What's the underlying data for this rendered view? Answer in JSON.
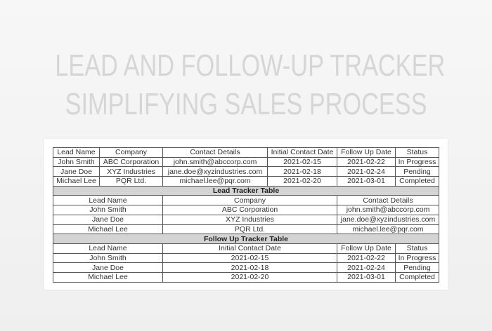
{
  "title": {
    "line1": "LEAD AND FOLLOW-UP TRACKER",
    "line2": "SIMPLIFYING SALES PROCESS"
  },
  "main_table": {
    "headers": [
      "Lead Name",
      "Company",
      "Contact Details",
      "Initial Contact Date",
      "Follow Up Date",
      "Status"
    ],
    "rows": [
      [
        "John Smith",
        "ABC Corporation",
        "john.smith@abccorp.com",
        "2021-02-15",
        "2021-02-22",
        "In Progress"
      ],
      [
        "Jane Doe",
        "XYZ Industries",
        "jane.doe@xyzindustries.com",
        "2021-02-18",
        "2021-02-24",
        "Pending"
      ],
      [
        "Michael Lee",
        "PQR Ltd.",
        "michael.lee@pqr.com",
        "2021-02-20",
        "2021-03-01",
        "Completed"
      ]
    ]
  },
  "lead_tracker": {
    "title": "Lead Tracker Table",
    "headers": [
      "Lead Name",
      "Company",
      "Contact Details"
    ],
    "rows": [
      [
        "John Smith",
        "ABC Corporation",
        "john.smith@abccorp.com"
      ],
      [
        "Jane Doe",
        "XYZ Industries",
        "jane.doe@xyzindustries.com"
      ],
      [
        "Michael Lee",
        "PQR Ltd.",
        "michael.lee@pqr.com"
      ]
    ]
  },
  "follow_up_tracker": {
    "title": "Follow Up Tracker Table",
    "headers": [
      "Lead Name",
      "Initial Contact Date",
      "Follow Up Date",
      "Status"
    ],
    "rows": [
      [
        "John Smith",
        "2021-02-15",
        "2021-02-22",
        "In Progress"
      ],
      [
        "Jane Doe",
        "2021-02-18",
        "2021-02-24",
        "Pending"
      ],
      [
        "Michael Lee",
        "2021-02-20",
        "2021-03-01",
        "Completed"
      ]
    ]
  },
  "colors": {
    "section_header_bg": "#d4d4d4",
    "title_text": "#d6d6d6",
    "border": "#555555"
  }
}
